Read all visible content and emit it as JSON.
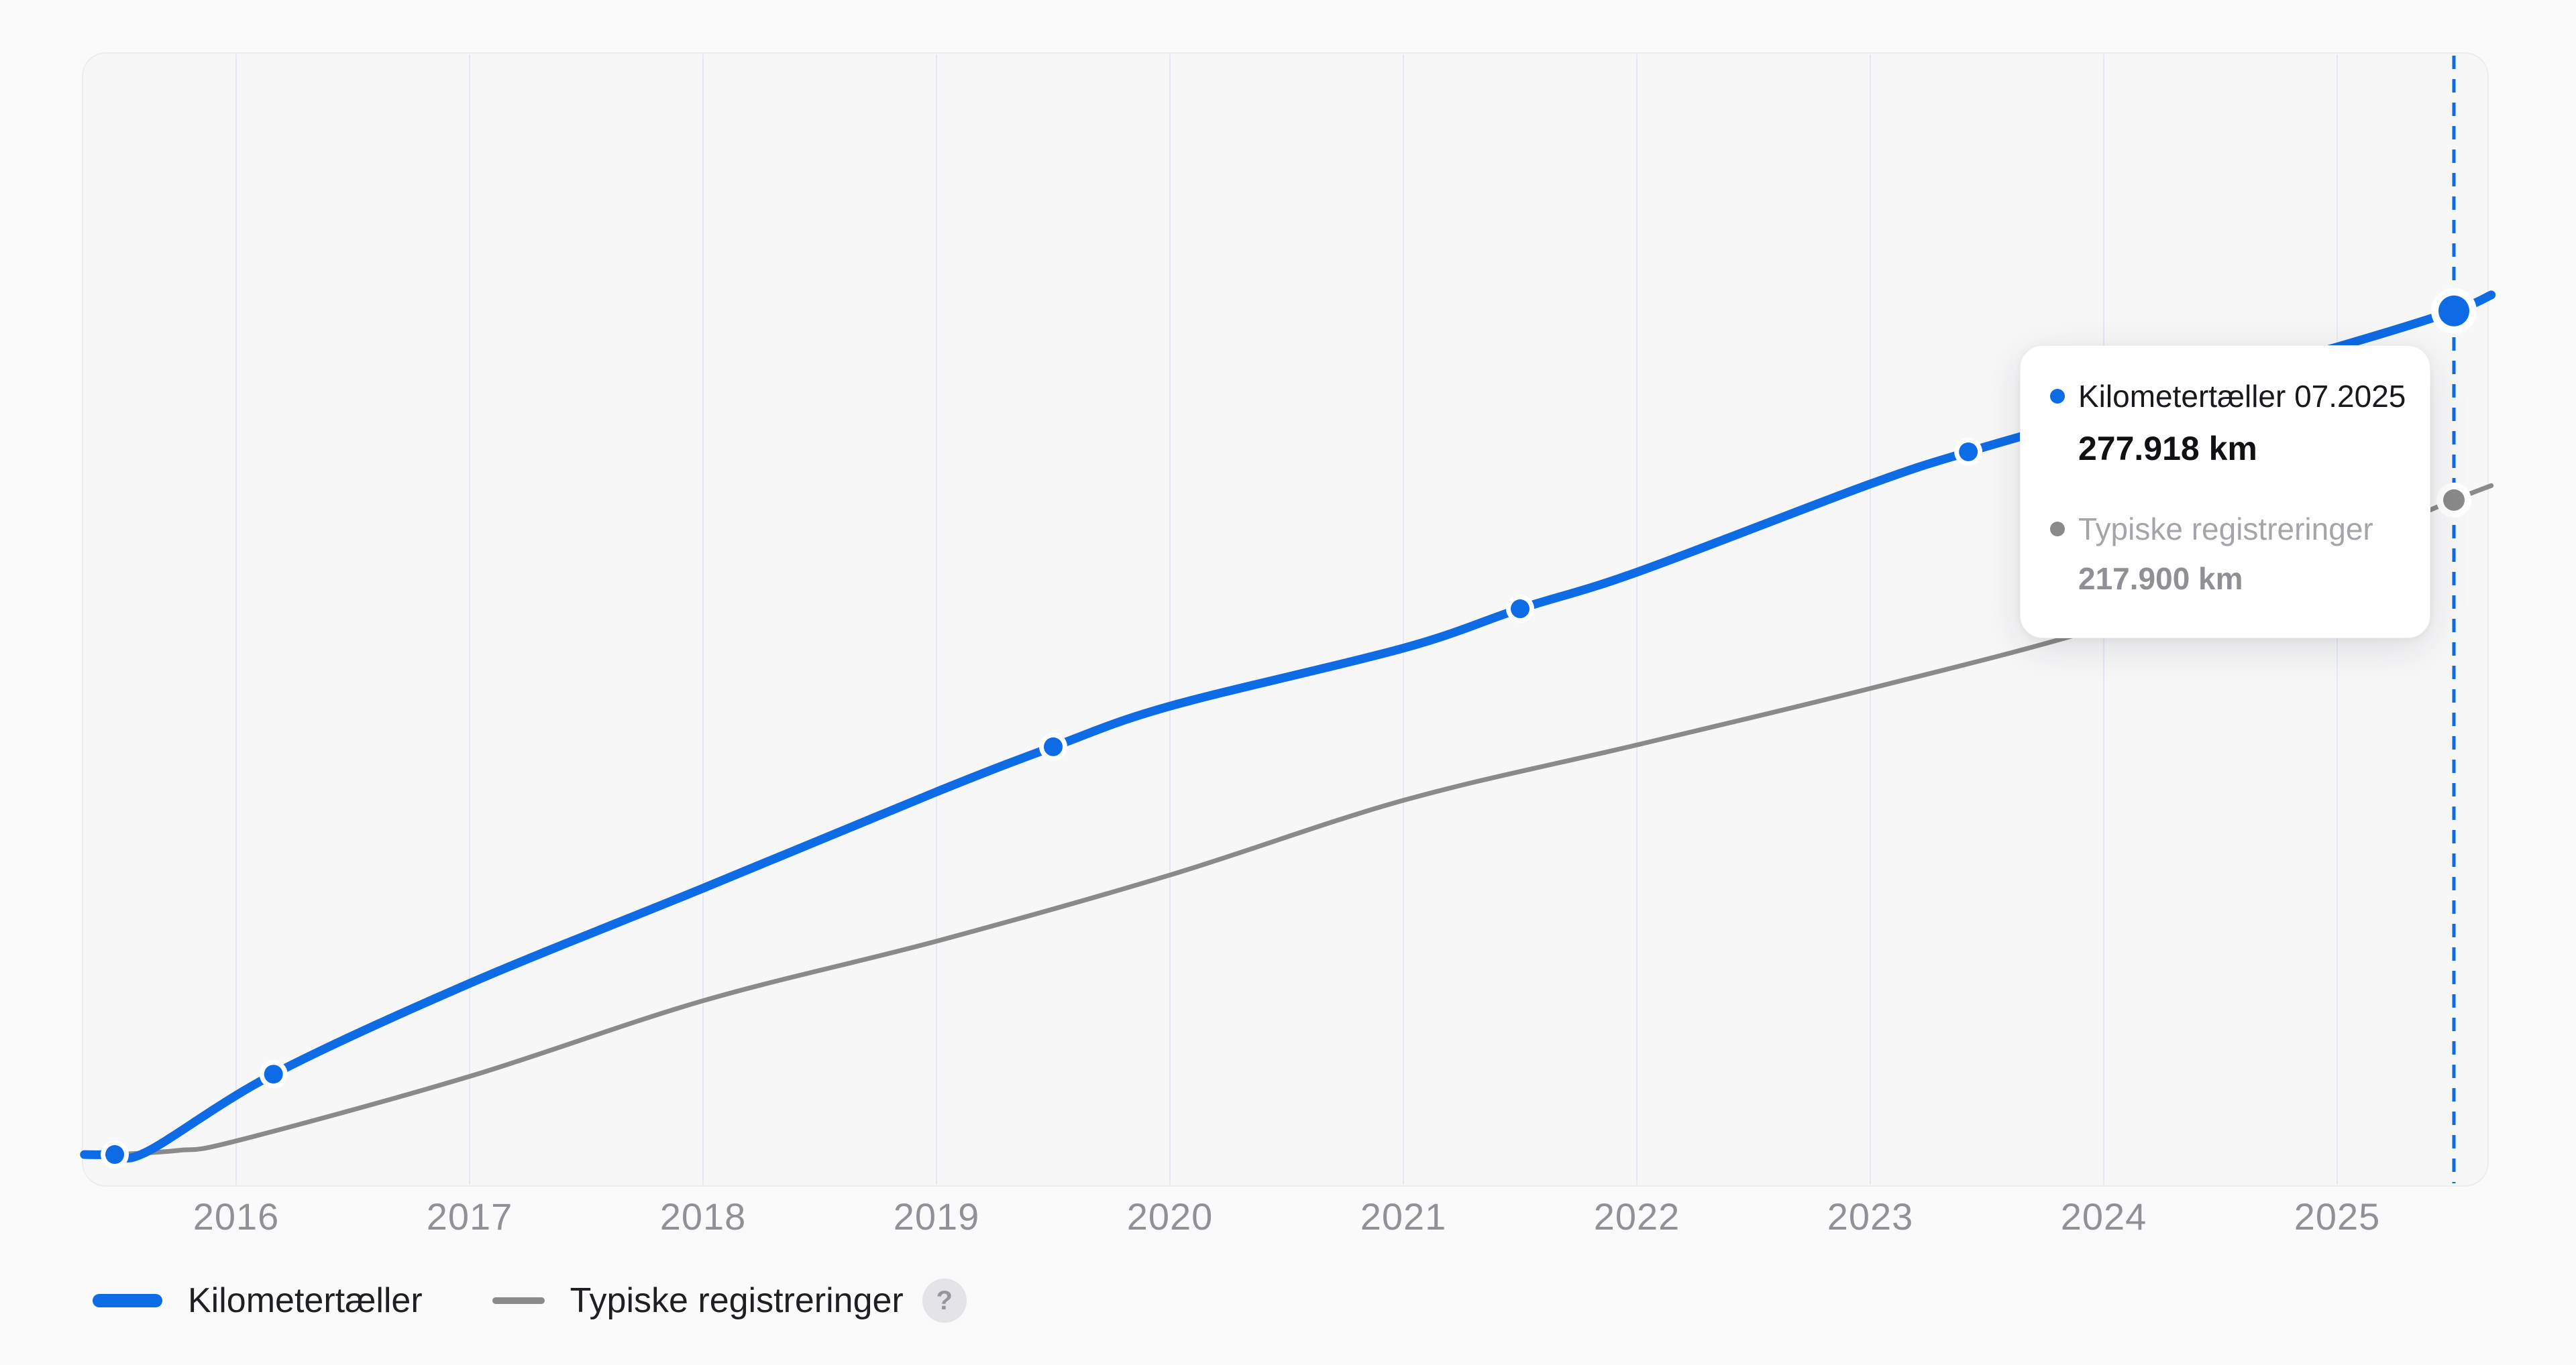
{
  "chart_data": {
    "type": "line",
    "title": "",
    "xlabel": "",
    "ylabel": "km",
    "x_ticks": [
      "2016",
      "2017",
      "2018",
      "2019",
      "2020",
      "2021",
      "2022",
      "2023",
      "2024",
      "2025"
    ],
    "x_range": [
      2015.34,
      2025.66
    ],
    "ylim": [
      0,
      360000
    ],
    "grid": "vertical-only",
    "legend_position": "bottom-left",
    "cursor": {
      "year": 2025.5,
      "label": "07.2025"
    },
    "colors": {
      "accent_blue": "#0e6be6",
      "line_gray": "#8a8a8a",
      "plot_background": "#f7f7f8",
      "page_background": "#fafafa",
      "gridline": "#e4e9f5",
      "plot_border": "#ececef",
      "axis_label": "#8f9196"
    },
    "series": [
      {
        "name": "Kilometertæller",
        "color": "#0e6be6",
        "stroke_width": 13,
        "points": [
          [
            2015.35,
            10200
          ],
          [
            2015.48,
            10200
          ],
          [
            2015.62,
            11200
          ],
          [
            2016.16,
            35700
          ],
          [
            2017,
            64500
          ],
          [
            2018,
            94700
          ],
          [
            2019,
            125300
          ],
          [
            2019.5,
            139600
          ],
          [
            2020,
            152500
          ],
          [
            2021,
            170900
          ],
          [
            2021.5,
            183400
          ],
          [
            2022,
            195000
          ],
          [
            2023,
            223000
          ],
          [
            2023.42,
            233200
          ],
          [
            2024,
            245500
          ],
          [
            2025,
            266500
          ],
          [
            2025.5,
            277918
          ],
          [
            2025.66,
            283000
          ]
        ],
        "markers": [
          [
            2015.48,
            10200
          ],
          [
            2016.16,
            35700
          ],
          [
            2019.5,
            139600
          ],
          [
            2021.5,
            183400
          ],
          [
            2023.42,
            233200
          ]
        ],
        "end_marker": [
          2025.5,
          277918
        ],
        "end_marker_value_km": 277918
      },
      {
        "name": "Typiske registreringer",
        "color": "#8a8a8a",
        "stroke_width": 7,
        "points": [
          [
            2015.48,
            10200
          ],
          [
            2015.75,
            11500
          ],
          [
            2016,
            14500
          ],
          [
            2017,
            35000
          ],
          [
            2018,
            59000
          ],
          [
            2019,
            77900
          ],
          [
            2020,
            98900
          ],
          [
            2021,
            122600
          ],
          [
            2022,
            140200
          ],
          [
            2023,
            158100
          ],
          [
            2024,
            177700
          ],
          [
            2025,
            203000
          ],
          [
            2025.5,
            217900
          ],
          [
            2025.66,
            222500
          ]
        ],
        "markers": [],
        "end_marker": [
          2025.5,
          217900
        ],
        "end_marker_value_km": 217900
      }
    ]
  },
  "tooltip": {
    "row1": {
      "label": "Kilometertæller 07.2025",
      "value": "277.918 km"
    },
    "row2": {
      "label": "Typiske registreringer",
      "value": "217.900 km"
    }
  },
  "legend": {
    "help_icon_label": "?"
  }
}
